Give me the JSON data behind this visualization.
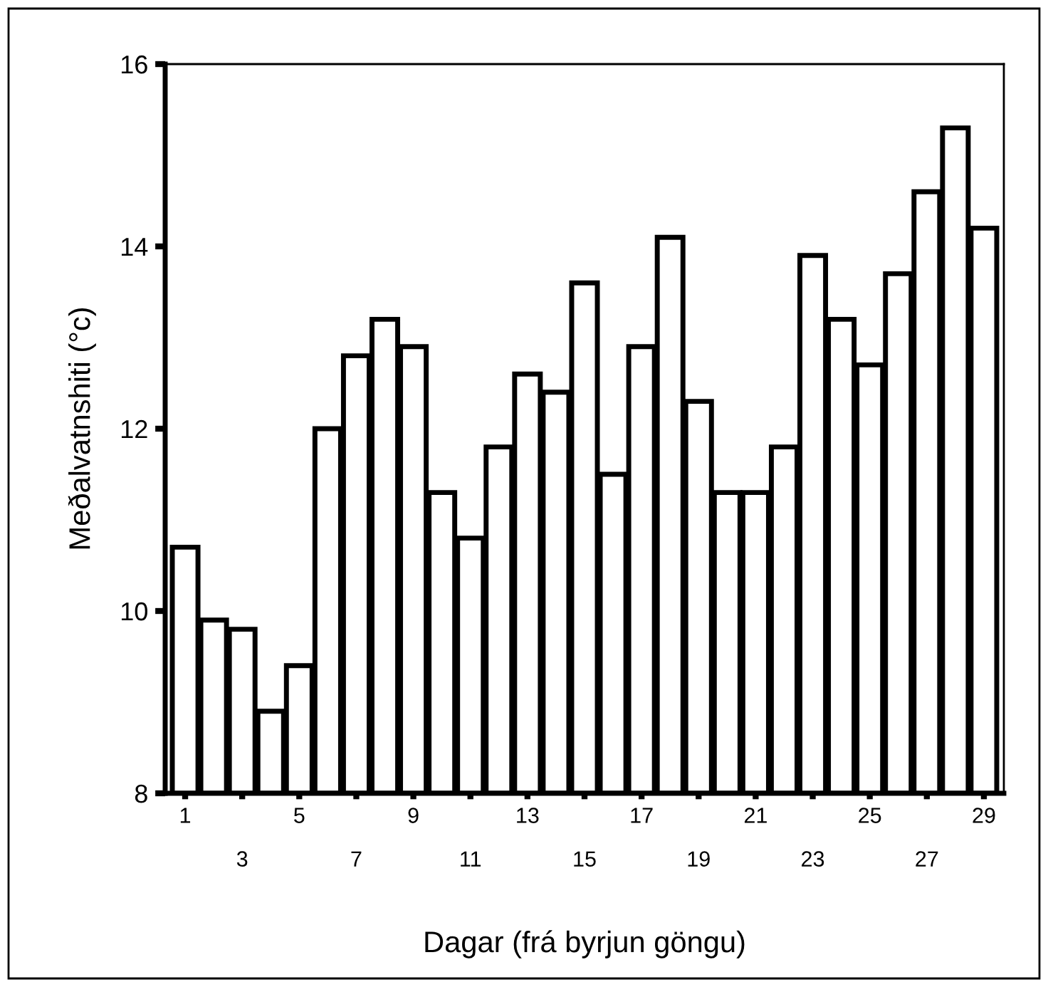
{
  "chart_data": {
    "type": "bar",
    "xlabel": "Dagar (frá byrjun göngu)",
    "ylabel": "Meðalvatnshiti (°c)",
    "categories": [
      "1",
      null,
      "3",
      null,
      "5",
      null,
      "7",
      null,
      "9",
      null,
      "11",
      null,
      "13",
      null,
      "15",
      null,
      "17",
      null,
      "19",
      null,
      "21",
      null,
      "23",
      null,
      "25",
      null,
      "27",
      null,
      "29"
    ],
    "values": [
      10.7,
      9.9,
      9.8,
      8.9,
      9.4,
      12.0,
      12.8,
      13.2,
      12.9,
      11.3,
      10.8,
      11.8,
      12.6,
      12.4,
      13.6,
      11.5,
      12.9,
      14.1,
      12.3,
      11.3,
      11.3,
      11.8,
      13.9,
      13.2,
      12.7,
      13.7,
      14.6,
      15.3,
      14.2
    ],
    "color": "#ffffff",
    "ylim": [
      8,
      16
    ],
    "yticks": [
      8,
      10,
      12,
      14,
      16
    ],
    "grid": false,
    "legend": false
  }
}
